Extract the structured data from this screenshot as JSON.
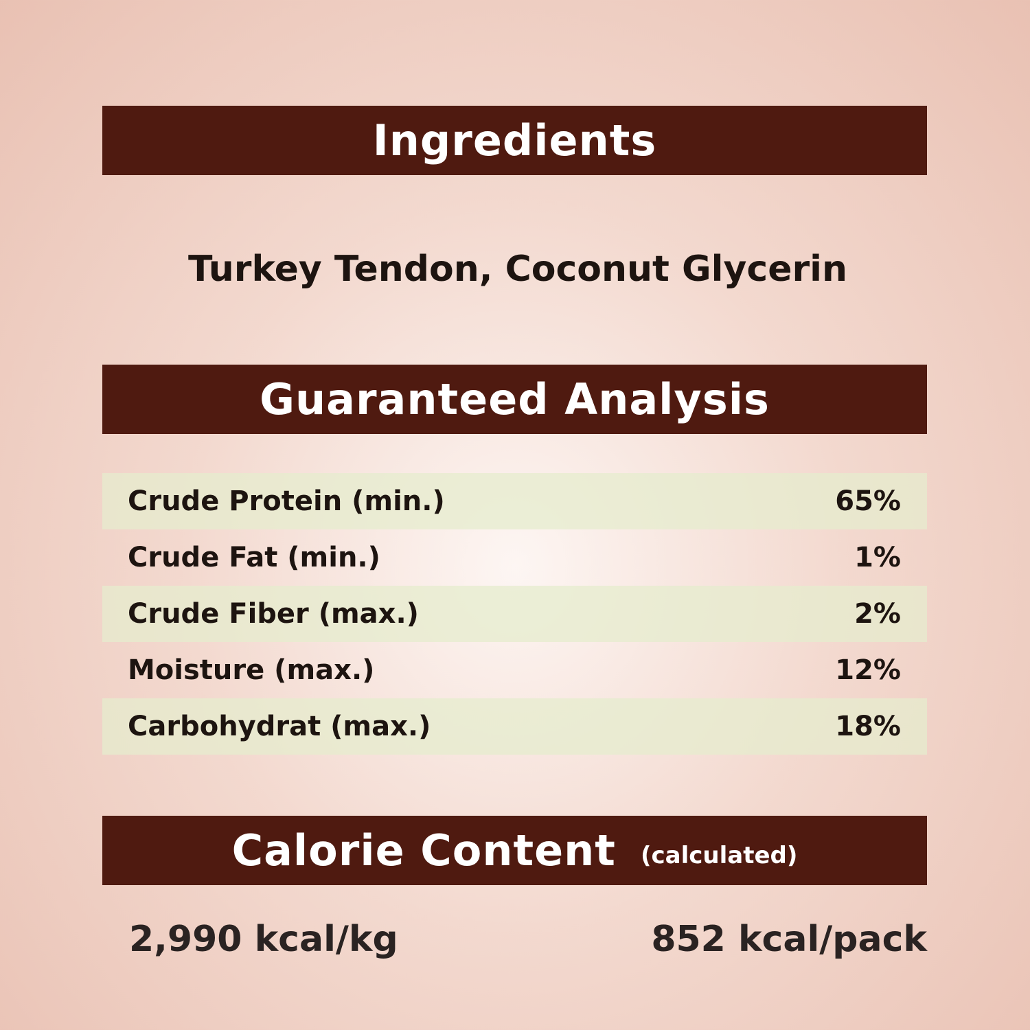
{
  "ingredients": {
    "title": "Ingredients",
    "text": "Turkey Tendon, Coconut Glycerin"
  },
  "analysis": {
    "title": "Guaranteed Analysis",
    "rows": [
      {
        "label": "Crude Protein (min.)",
        "value": "65%"
      },
      {
        "label": "Crude Fat (min.)",
        "value": "1%"
      },
      {
        "label": "Crude Fiber (max.)",
        "value": "2%"
      },
      {
        "label": "Moisture (max.)",
        "value": "12%"
      },
      {
        "label": "Carbohydrat (max.)",
        "value": "18%"
      }
    ]
  },
  "calories": {
    "title": "Calorie Content",
    "subtitle": "(calculated)",
    "per_kg": "2,990 kcal/kg",
    "per_pack": "852 kcal/pack"
  },
  "colors": {
    "band": "#4f1a10",
    "row_shade": "#e6eccd"
  }
}
